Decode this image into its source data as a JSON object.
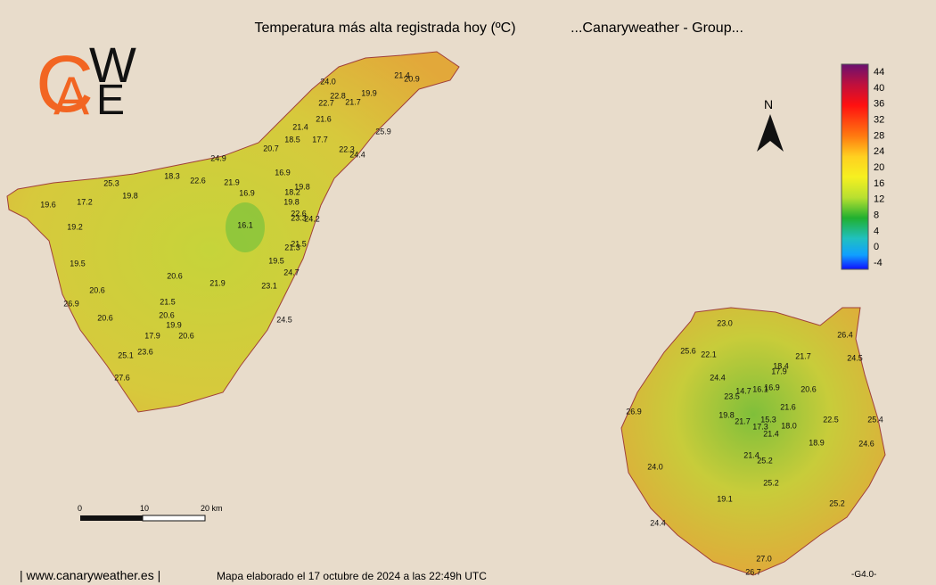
{
  "header": {
    "title": "Temperatura más alta registrada hoy (ºC)",
    "subtitle": "...Canaryweather - Group..."
  },
  "logo": {
    "letters": [
      "C",
      "A",
      "W",
      "E"
    ]
  },
  "compass": "N",
  "legend": {
    "ticks": [
      "44",
      "40",
      "36",
      "32",
      "28",
      "24",
      "20",
      "16",
      "12",
      "8",
      "4",
      "0",
      "-4"
    ]
  },
  "tenerife": {
    "labels": [
      "24.0",
      "21.4",
      "20.9",
      "22.8",
      "19.9",
      "22.7",
      "21.7",
      "21.6",
      "21.4",
      "25.9",
      "18.5",
      "17.7",
      "20.7",
      "22.3",
      "24.4",
      "24.9",
      "16.9",
      "18.3",
      "22.6",
      "21.9",
      "25.3",
      "19.8",
      "18.2",
      "16.9",
      "19.8",
      "17.2",
      "19.8",
      "19.6",
      "22.6",
      "23.3",
      "24.2",
      "16.1",
      "19.2",
      "21.5",
      "21.3",
      "19.5",
      "19.5",
      "24.7",
      "20.6",
      "21.9",
      "23.1",
      "20.6",
      "26.9",
      "21.5",
      "20.6",
      "20.6",
      "24.5",
      "19.9",
      "17.9",
      "20.6",
      "23.6",
      "25.1",
      "27.6"
    ]
  },
  "gran_canaria": {
    "labels": [
      "23.0",
      "26.4",
      "25.6",
      "22.1",
      "21.7",
      "24.5",
      "18.4",
      "17.9",
      "24.4",
      "14.7",
      "16.1",
      "16.9",
      "20.6",
      "23.5",
      "21.6",
      "26.9",
      "19.8",
      "15.3",
      "21.7",
      "22.5",
      "25.4",
      "17.3",
      "18.0",
      "21.4",
      "18.9",
      "24.6",
      "21.4",
      "25.2",
      "24.0",
      "25.2",
      "19.1",
      "25.2",
      "24.4",
      "27.0",
      "26.7"
    ]
  },
  "scale": {
    "labels": [
      "0",
      "10",
      "20 km"
    ]
  },
  "footer": {
    "site": "| www.canaryweather.es |",
    "note": "Mapa elaborado el 17 octubre de 2024 a las 22:49h UTC",
    "version": "-G4.0-"
  }
}
